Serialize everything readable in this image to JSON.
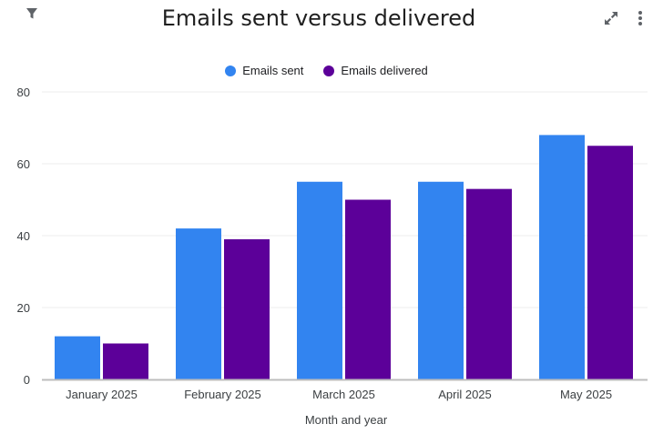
{
  "toolbar": {
    "filter_icon": "filter-icon",
    "expand_icon": "expand-icon",
    "more_icon": "more-vert-icon"
  },
  "colors": {
    "sent": "#3284f0",
    "delivered": "#5c0099",
    "grid": "#ececec",
    "baseline": "#bdbdbd"
  },
  "chart_data": {
    "type": "bar",
    "title": "Emails sent versus delivered",
    "xlabel": "Month and year",
    "ylabel": "",
    "ylim": [
      0,
      80
    ],
    "yticks": [
      0,
      20,
      40,
      60,
      80
    ],
    "grid": true,
    "legend_position": "top-center",
    "categories": [
      "January 2025",
      "February 2025",
      "March 2025",
      "April 2025",
      "May 2025"
    ],
    "series": [
      {
        "name": "Emails sent",
        "values": [
          12,
          42,
          55,
          55,
          68
        ]
      },
      {
        "name": "Emails delivered",
        "values": [
          10,
          39,
          50,
          53,
          65
        ]
      }
    ]
  }
}
